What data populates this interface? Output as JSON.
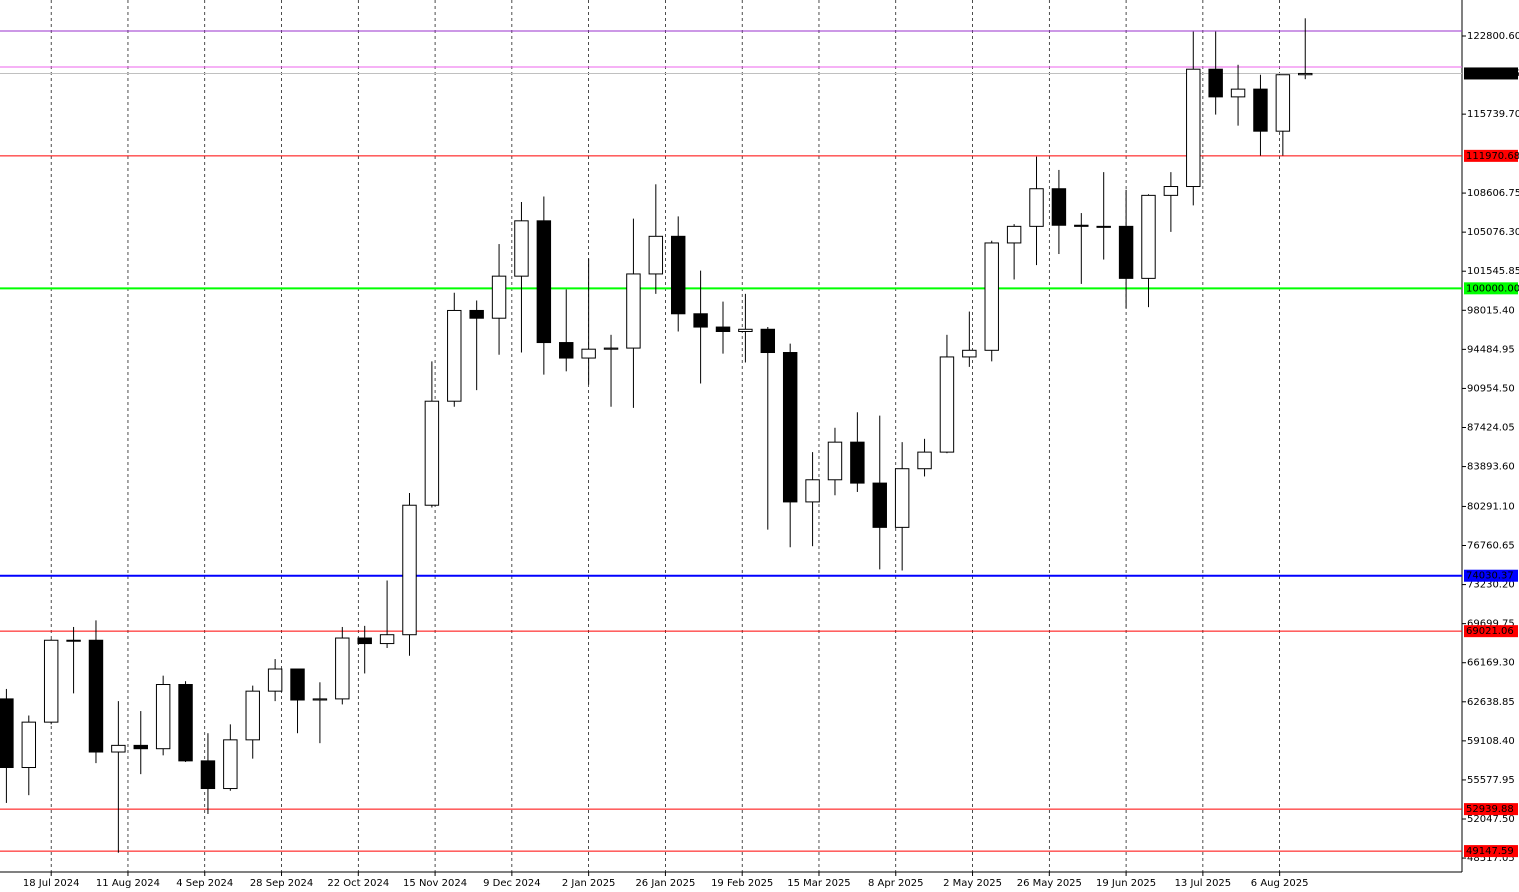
{
  "chart_data": {
    "type": "candlestick",
    "x": [
      "2024-07-01",
      "2024-07-08",
      "2024-07-15",
      "2024-07-22",
      "2024-07-29",
      "2024-08-05",
      "2024-08-12",
      "2024-08-19",
      "2024-08-26",
      "2024-09-02",
      "2024-09-09",
      "2024-09-16",
      "2024-09-23",
      "2024-09-30",
      "2024-10-07",
      "2024-10-14",
      "2024-10-21",
      "2024-10-28",
      "2024-11-04",
      "2024-11-11",
      "2024-11-18",
      "2024-11-25",
      "2024-12-02",
      "2024-12-09",
      "2024-12-16",
      "2024-12-23",
      "2024-12-30",
      "2025-01-06",
      "2025-01-13",
      "2025-01-20",
      "2025-01-27",
      "2025-02-03",
      "2025-02-10",
      "2025-02-17",
      "2025-02-24",
      "2025-03-03",
      "2025-03-10",
      "2025-03-17",
      "2025-03-24",
      "2025-03-31",
      "2025-04-07",
      "2025-04-14",
      "2025-04-21",
      "2025-04-28",
      "2025-05-05",
      "2025-05-12",
      "2025-05-19",
      "2025-05-26",
      "2025-06-02",
      "2025-06-09",
      "2025-06-16",
      "2025-06-23",
      "2025-06-30",
      "2025-07-07",
      "2025-07-14",
      "2025-07-21",
      "2025-07-28",
      "2025-08-04",
      "2025-08-11"
    ],
    "open": [
      62900,
      56700,
      60800,
      68200,
      68200,
      58100,
      58700,
      58400,
      64200,
      57300,
      54800,
      59200,
      63600,
      65600,
      62800,
      62900,
      68400,
      67900,
      68700,
      80400,
      89800,
      98000,
      97300,
      101100,
      106100,
      95100,
      93700,
      94500,
      94600,
      101300,
      104700,
      97700,
      96500,
      96100,
      96300,
      94200,
      80700,
      82700,
      86100,
      82400,
      78400,
      83700,
      85200,
      93800,
      94400,
      104100,
      105600,
      109000,
      105700,
      105600,
      105600,
      100900,
      108400,
      109200,
      119800,
      117300,
      118000,
      114200,
      119300
    ],
    "high": [
      63800,
      61400,
      68300,
      69400,
      70000,
      62700,
      61800,
      65000,
      64500,
      59800,
      60600,
      64100,
      66500,
      65600,
      64400,
      69400,
      69500,
      73600,
      81500,
      93400,
      99600,
      98900,
      104000,
      107800,
      108300,
      99900,
      102700,
      95800,
      106300,
      109400,
      106500,
      101600,
      98800,
      99500,
      96500,
      95000,
      85200,
      87400,
      88800,
      88500,
      86100,
      86400,
      95800,
      97900,
      104300,
      105800,
      111900,
      110700,
      106800,
      110500,
      108900,
      108500,
      110500,
      123200,
      123200,
      120200,
      119300,
      119300,
      124400
    ],
    "low": [
      53500,
      54200,
      60600,
      63400,
      57100,
      49000,
      56100,
      57800,
      57200,
      52500,
      54600,
      57500,
      62700,
      59800,
      58900,
      62400,
      65200,
      67500,
      66800,
      80200,
      89300,
      90800,
      94000,
      94200,
      92200,
      92500,
      91300,
      89300,
      89200,
      99500,
      96100,
      91400,
      94100,
      93300,
      78200,
      76600,
      76700,
      81300,
      81600,
      74600,
      74500,
      83000,
      85100,
      92900,
      93400,
      100800,
      102100,
      103100,
      100400,
      102600,
      98200,
      98300,
      105100,
      107500,
      115700,
      114700,
      112000,
      112000,
      118900
    ],
    "close": [
      56700,
      60800,
      68200,
      68200,
      58100,
      58700,
      58400,
      64200,
      57300,
      54800,
      59200,
      63600,
      65600,
      62800,
      62900,
      68400,
      67900,
      68700,
      80400,
      89800,
      98000,
      97300,
      101100,
      106100,
      95100,
      93700,
      94500,
      94600,
      101300,
      104700,
      97700,
      96500,
      96100,
      96300,
      94200,
      80700,
      82700,
      86100,
      82400,
      78400,
      83700,
      85200,
      93800,
      94400,
      104100,
      105600,
      109000,
      105700,
      105600,
      105600,
      100900,
      108400,
      109200,
      119800,
      117300,
      118000,
      114200,
      119300,
      119416.35
    ],
    "xlim": [
      "2024-07-02",
      "2025-10-02"
    ],
    "xticks": [
      {
        "value": "2024-07-18",
        "label": "18 Jul 2024"
      },
      {
        "value": "2024-08-11",
        "label": "11 Aug 2024"
      },
      {
        "value": "2024-09-04",
        "label": "4 Sep 2024"
      },
      {
        "value": "2024-09-28",
        "label": "28 Sep 2024"
      },
      {
        "value": "2024-10-22",
        "label": "22 Oct 2024"
      },
      {
        "value": "2024-11-15",
        "label": "15 Nov 2024"
      },
      {
        "value": "2024-12-09",
        "label": "9 Dec 2024"
      },
      {
        "value": "2025-01-02",
        "label": "2 Jan 2025"
      },
      {
        "value": "2025-01-26",
        "label": "26 Jan 2025"
      },
      {
        "value": "2025-02-19",
        "label": "19 Feb 2025"
      },
      {
        "value": "2025-03-15",
        "label": "15 Mar 2025"
      },
      {
        "value": "2025-04-08",
        "label": "8 Apr 2025"
      },
      {
        "value": "2025-05-02",
        "label": "2 May 2025"
      },
      {
        "value": "2025-05-26",
        "label": "26 May 2025"
      },
      {
        "value": "2025-06-19",
        "label": "19 Jun 2025"
      },
      {
        "value": "2025-07-13",
        "label": "13 Jul 2025"
      },
      {
        "value": "2025-08-06",
        "label": "6 Aug 2025"
      }
    ],
    "ylim": [
      47258,
      126054
    ],
    "yticks": [
      {
        "value": 122800.6,
        "label": "122800.60"
      },
      {
        "value": 115739.7,
        "label": "115739.70"
      },
      {
        "value": 108606.75,
        "label": "108606.75"
      },
      {
        "value": 105076.3,
        "label": "105076.30"
      },
      {
        "value": 101545.85,
        "label": "101545.85"
      },
      {
        "value": 98015.4,
        "label": "98015.40"
      },
      {
        "value": 94484.95,
        "label": "94484.95"
      },
      {
        "value": 90954.5,
        "label": "90954.50"
      },
      {
        "value": 87424.05,
        "label": "87424.05"
      },
      {
        "value": 83893.6,
        "label": "83893.60"
      },
      {
        "value": 80291.1,
        "label": "80291.10"
      },
      {
        "value": 76760.65,
        "label": "76760.65"
      },
      {
        "value": 73230.2,
        "label": "73230.20"
      },
      {
        "value": 69699.75,
        "label": "69699.75"
      },
      {
        "value": 66169.3,
        "label": "66169.30"
      },
      {
        "value": 62638.85,
        "label": "62638.85"
      },
      {
        "value": 59108.4,
        "label": "59108.40"
      },
      {
        "value": 55577.95,
        "label": "55577.95"
      },
      {
        "value": 52047.5,
        "label": "52047.50"
      },
      {
        "value": 48517.05,
        "label": "48517.05"
      }
    ],
    "grid": true,
    "levels": [
      {
        "value": 123250,
        "color": "#9932cc"
      },
      {
        "value": 120000,
        "color": "#ee66ee"
      },
      {
        "value": 119416.35,
        "label": "119416.35",
        "color": "#c0c0c0",
        "label_color": "#000000"
      },
      {
        "value": 111970.68,
        "label": "111970.68",
        "color": "#ff0000"
      },
      {
        "value": 100000,
        "label": "100000.00",
        "color": "#00ff00"
      },
      {
        "value": 74030.37,
        "label": "74030.37",
        "color": "#0000ff"
      },
      {
        "value": 69021.06,
        "label": "69021.06",
        "color": "#ff0000"
      },
      {
        "value": 52939.88,
        "label": "52939.88",
        "color": "#ff0000"
      },
      {
        "value": 49147.59,
        "label": "49147.59",
        "color": "#ff0000"
      }
    ]
  }
}
